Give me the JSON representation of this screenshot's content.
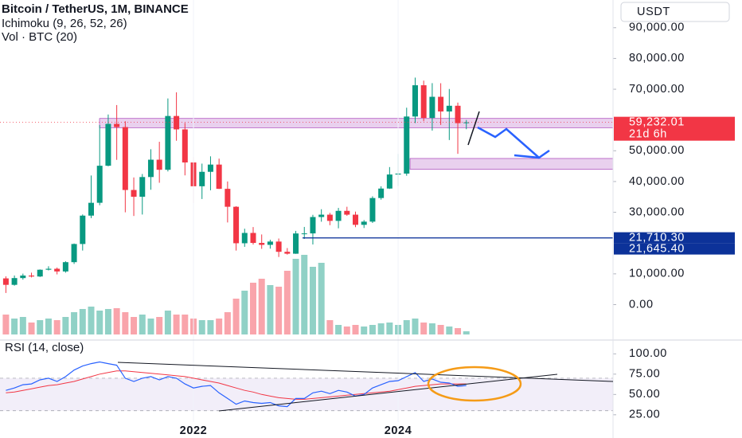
{
  "chart_data": {
    "type": "candlestick",
    "title": "Bitcoin / TetherUS, 1M, BINANCE",
    "indicators": [
      "Ichimoku (9, 26, 52, 26)",
      "Vol · BTC (20)"
    ],
    "currency": "USDT",
    "up_color": "#089981",
    "down_color": "#f23645",
    "categories": [
      null,
      null,
      null,
      null,
      null,
      null,
      null,
      null,
      null,
      null,
      null,
      null,
      null,
      null,
      null,
      null,
      null,
      null,
      null,
      null,
      null,
      null,
      "2022",
      null,
      null,
      null,
      null,
      null,
      null,
      null,
      null,
      null,
      null,
      null,
      null,
      null,
      null,
      null,
      null,
      null,
      null,
      null,
      null,
      null,
      null,
      null,
      "2024",
      null,
      null,
      null,
      null,
      null,
      null,
      null,
      null
    ],
    "open": [
      8523,
      6424,
      8624,
      9446,
      9138,
      11335,
      11650,
      10777,
      13797,
      19700,
      28923,
      33092,
      45135,
      58740,
      57694,
      37253,
      35045,
      41461,
      47100,
      43824,
      61300,
      56950,
      46200,
      38466,
      43160,
      45510,
      37630,
      31801,
      19942,
      23293,
      20050,
      19423,
      20491,
      17163,
      16542,
      23125,
      23141,
      28465,
      29233,
      27210,
      30472,
      29232,
      25931,
      26962,
      34639,
      37720,
      42284,
      42580,
      61130,
      71291,
      60672,
      67540,
      62772,
      64628,
      58974
    ],
    "high": [
      9188,
      9460,
      10067,
      10380,
      11444,
      12468,
      12050,
      14100,
      19863,
      29300,
      41950,
      58352,
      61788,
      64854,
      59592,
      41330,
      42448,
      50500,
      52920,
      67000,
      69000,
      59053,
      47990,
      45821,
      48190,
      47444,
      40023,
      31986,
      24668,
      25211,
      22800,
      21085,
      21480,
      18387,
      23960,
      25250,
      29184,
      31000,
      29820,
      31431,
      31804,
      30232,
      27488,
      35198,
      38450,
      44700,
      48969,
      64000,
      73777,
      72797,
      71979,
      71949,
      70079,
      65660,
      60000
    ],
    "low": [
      3782,
      6150,
      8106,
      8833,
      8973,
      11115,
      9825,
      10374,
      13219,
      17572,
      28130,
      32296,
      44962,
      47044,
      30000,
      28805,
      29278,
      37332,
      39600,
      43283,
      53256,
      42000,
      32917,
      34322,
      37155,
      37578,
      26700,
      17567,
      18781,
      19520,
      18125,
      18190,
      15476,
      16256,
      16499,
      21351,
      19549,
      26942,
      25811,
      24800,
      28861,
      25166,
      24900,
      26538,
      34100,
      37600,
      38555,
      41884,
      59005,
      59600,
      56552,
      58402,
      53485,
      49000,
      57000
    ],
    "close": [
      6424,
      8624,
      9446,
      9138,
      11335,
      11650,
      10777,
      13797,
      19700,
      28923,
      33092,
      45135,
      58740,
      57694,
      37253,
      35045,
      41461,
      47100,
      43824,
      61300,
      56950,
      46200,
      38466,
      43160,
      45510,
      37630,
      31801,
      19942,
      23293,
      20050,
      19423,
      20491,
      17163,
      16542,
      23125,
      23141,
      28465,
      29233,
      27210,
      30472,
      29232,
      25931,
      26962,
      34639,
      37720,
      42284,
      42580,
      61130,
      71291,
      60672,
      67540,
      62772,
      64628,
      58974,
      59232.01
    ],
    "volume": [
      25,
      20,
      22,
      15,
      18,
      20,
      18,
      22,
      28,
      32,
      35,
      30,
      32,
      33,
      28,
      22,
      25,
      20,
      22,
      30,
      25,
      25,
      20,
      18,
      18,
      20,
      28,
      45,
      55,
      65,
      70,
      62,
      60,
      80,
      95,
      100,
      85,
      90,
      18,
      12,
      10,
      12,
      10,
      12,
      14,
      15,
      12,
      18,
      20,
      15,
      14,
      12,
      10,
      8,
      4
    ],
    "ylim": [
      -11000,
      99000
    ],
    "yticks": [
      {
        "value": 90000,
        "label": "90,000.00"
      },
      {
        "value": 80000,
        "label": "80,000.00"
      },
      {
        "value": 70000,
        "label": "70,000.00"
      },
      {
        "value": 50000,
        "label": "50,000.00"
      },
      {
        "value": 40000,
        "label": "40,000.00"
      },
      {
        "value": 30000,
        "label": "30,000.00"
      },
      {
        "value": 10000,
        "label": "10,000.00"
      },
      {
        "value": 0,
        "label": "0.00"
      }
    ],
    "zones": [
      [
        57500,
        60500
      ],
      [
        44000,
        47500
      ]
    ],
    "zone_color": "rgba(156,39,176,0.22)",
    "price_labels": [
      {
        "value": 59232.01,
        "label": "59,232.01",
        "extra": "21d 6h",
        "color": "#f23645"
      },
      {
        "value": 21710.3,
        "label": "21,710.30",
        "color": "#0c3299"
      },
      {
        "value": 21645.4,
        "label": "21,645.40",
        "color": "#0c3299"
      }
    ],
    "rsi": {
      "title": "RSI (14, close)",
      "values": [
        55,
        58,
        62,
        63,
        68,
        70,
        66,
        72,
        80,
        85,
        88,
        90,
        88,
        86,
        70,
        66,
        70,
        72,
        68,
        72,
        70,
        63,
        58,
        60,
        61,
        52,
        45,
        38,
        42,
        40,
        39,
        40,
        36,
        35,
        45,
        45,
        52,
        54,
        51,
        55,
        53,
        48,
        50,
        58,
        62,
        66,
        67,
        72,
        77,
        66,
        69,
        65,
        64,
        60,
        61
      ],
      "ma": [
        52,
        53,
        55,
        57,
        59,
        61,
        62,
        64,
        66,
        69,
        72,
        75,
        77,
        79,
        79,
        78,
        77,
        76,
        75,
        74,
        73,
        72,
        70,
        68,
        66,
        64,
        61,
        58,
        55,
        53,
        50,
        48,
        46,
        45,
        44,
        44,
        45,
        46,
        47,
        48,
        49,
        50,
        51,
        52,
        53,
        54,
        56,
        58,
        60,
        61,
        62,
        63,
        63,
        63,
        63
      ],
      "color": "#2962ff",
      "ma_color": "#f23645",
      "band": [
        30,
        70
      ],
      "ylim": [
        16,
        116
      ],
      "yticks": [
        {
          "value": 100,
          "label": "100.00"
        },
        {
          "value": 75,
          "label": "75.00"
        },
        {
          "value": 50,
          "label": "50.00"
        },
        {
          "value": 25,
          "label": "25.00"
        }
      ]
    }
  }
}
